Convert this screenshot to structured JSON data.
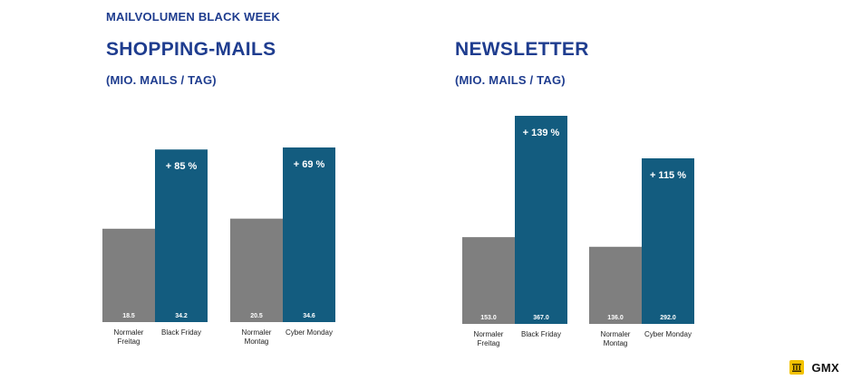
{
  "supertitle": "MAILVOLUMEN BLACK WEEK",
  "colors": {
    "normal": "#7f7f7f",
    "highlight": "#135c7f",
    "title": "#1f3d8f"
  },
  "logos": {
    "left": "united-internet-logo",
    "right_text": "GMX"
  },
  "chart_data": [
    {
      "type": "bar",
      "title": "SHOPPING-MAILS",
      "subtitle": "(MIO. MAILS / TAG)",
      "groups": [
        {
          "bars": [
            {
              "label": "Normaler Freitag",
              "value": 18.5,
              "display": "18.5",
              "kind": "normal"
            },
            {
              "label": "Black Friday",
              "value": 34.2,
              "display": "34.2",
              "kind": "highlight",
              "annotation": "+ 85 %"
            }
          ]
        },
        {
          "bars": [
            {
              "label": "Normaler Montag",
              "value": 20.5,
              "display": "20.5",
              "kind": "normal"
            },
            {
              "label": "Cyber Monday",
              "value": 34.6,
              "display": "34.6",
              "kind": "highlight",
              "annotation": "+ 69 %"
            }
          ]
        }
      ]
    },
    {
      "type": "bar",
      "title": "NEWSLETTER",
      "subtitle": "(MIO. MAILS / TAG)",
      "groups": [
        {
          "bars": [
            {
              "label": "Normaler Freitag",
              "value": 153.0,
              "display": "153.0",
              "kind": "normal"
            },
            {
              "label": "Black Friday",
              "value": 367.0,
              "display": "367.0",
              "kind": "highlight",
              "annotation": "+ 139 %"
            }
          ]
        },
        {
          "bars": [
            {
              "label": "Normaler Montag",
              "value": 136.0,
              "display": "136.0",
              "kind": "normal"
            },
            {
              "label": "Cyber Monday",
              "value": 292.0,
              "display": "292.0",
              "kind": "highlight",
              "annotation": "+ 115 %"
            }
          ]
        }
      ]
    }
  ]
}
